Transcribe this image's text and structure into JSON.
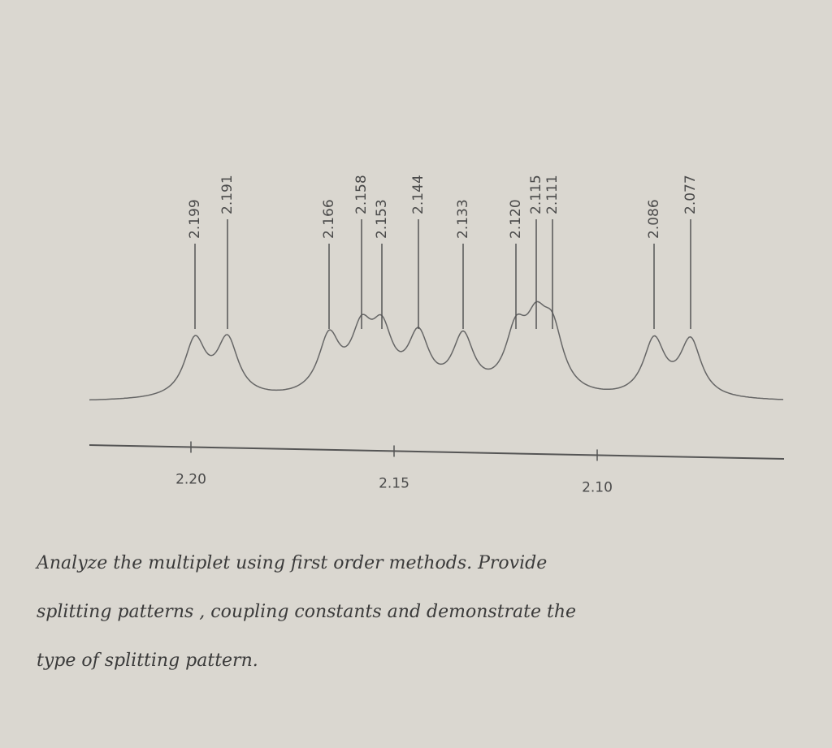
{
  "chart_data": {
    "type": "spectrum",
    "x": [
      2.199,
      2.191,
      2.166,
      2.158,
      2.153,
      2.144,
      2.133,
      2.115,
      {
        "value": 2.12,
        "label": "2.120"
      },
      2.111,
      2.086,
      2.077
    ],
    "xlim": [
      2.225,
      2.054
    ],
    "xticks": [
      {
        "value": 2.2,
        "label": "2.20"
      },
      2.15,
      {
        "value": 2.1,
        "label": "2.10"
      }
    ]
  },
  "question": [
    "Analyze the multiplet using first order methods. Provide",
    "splitting patterns , coupling constants and demonstrate the",
    "type of splitting pattern."
  ]
}
